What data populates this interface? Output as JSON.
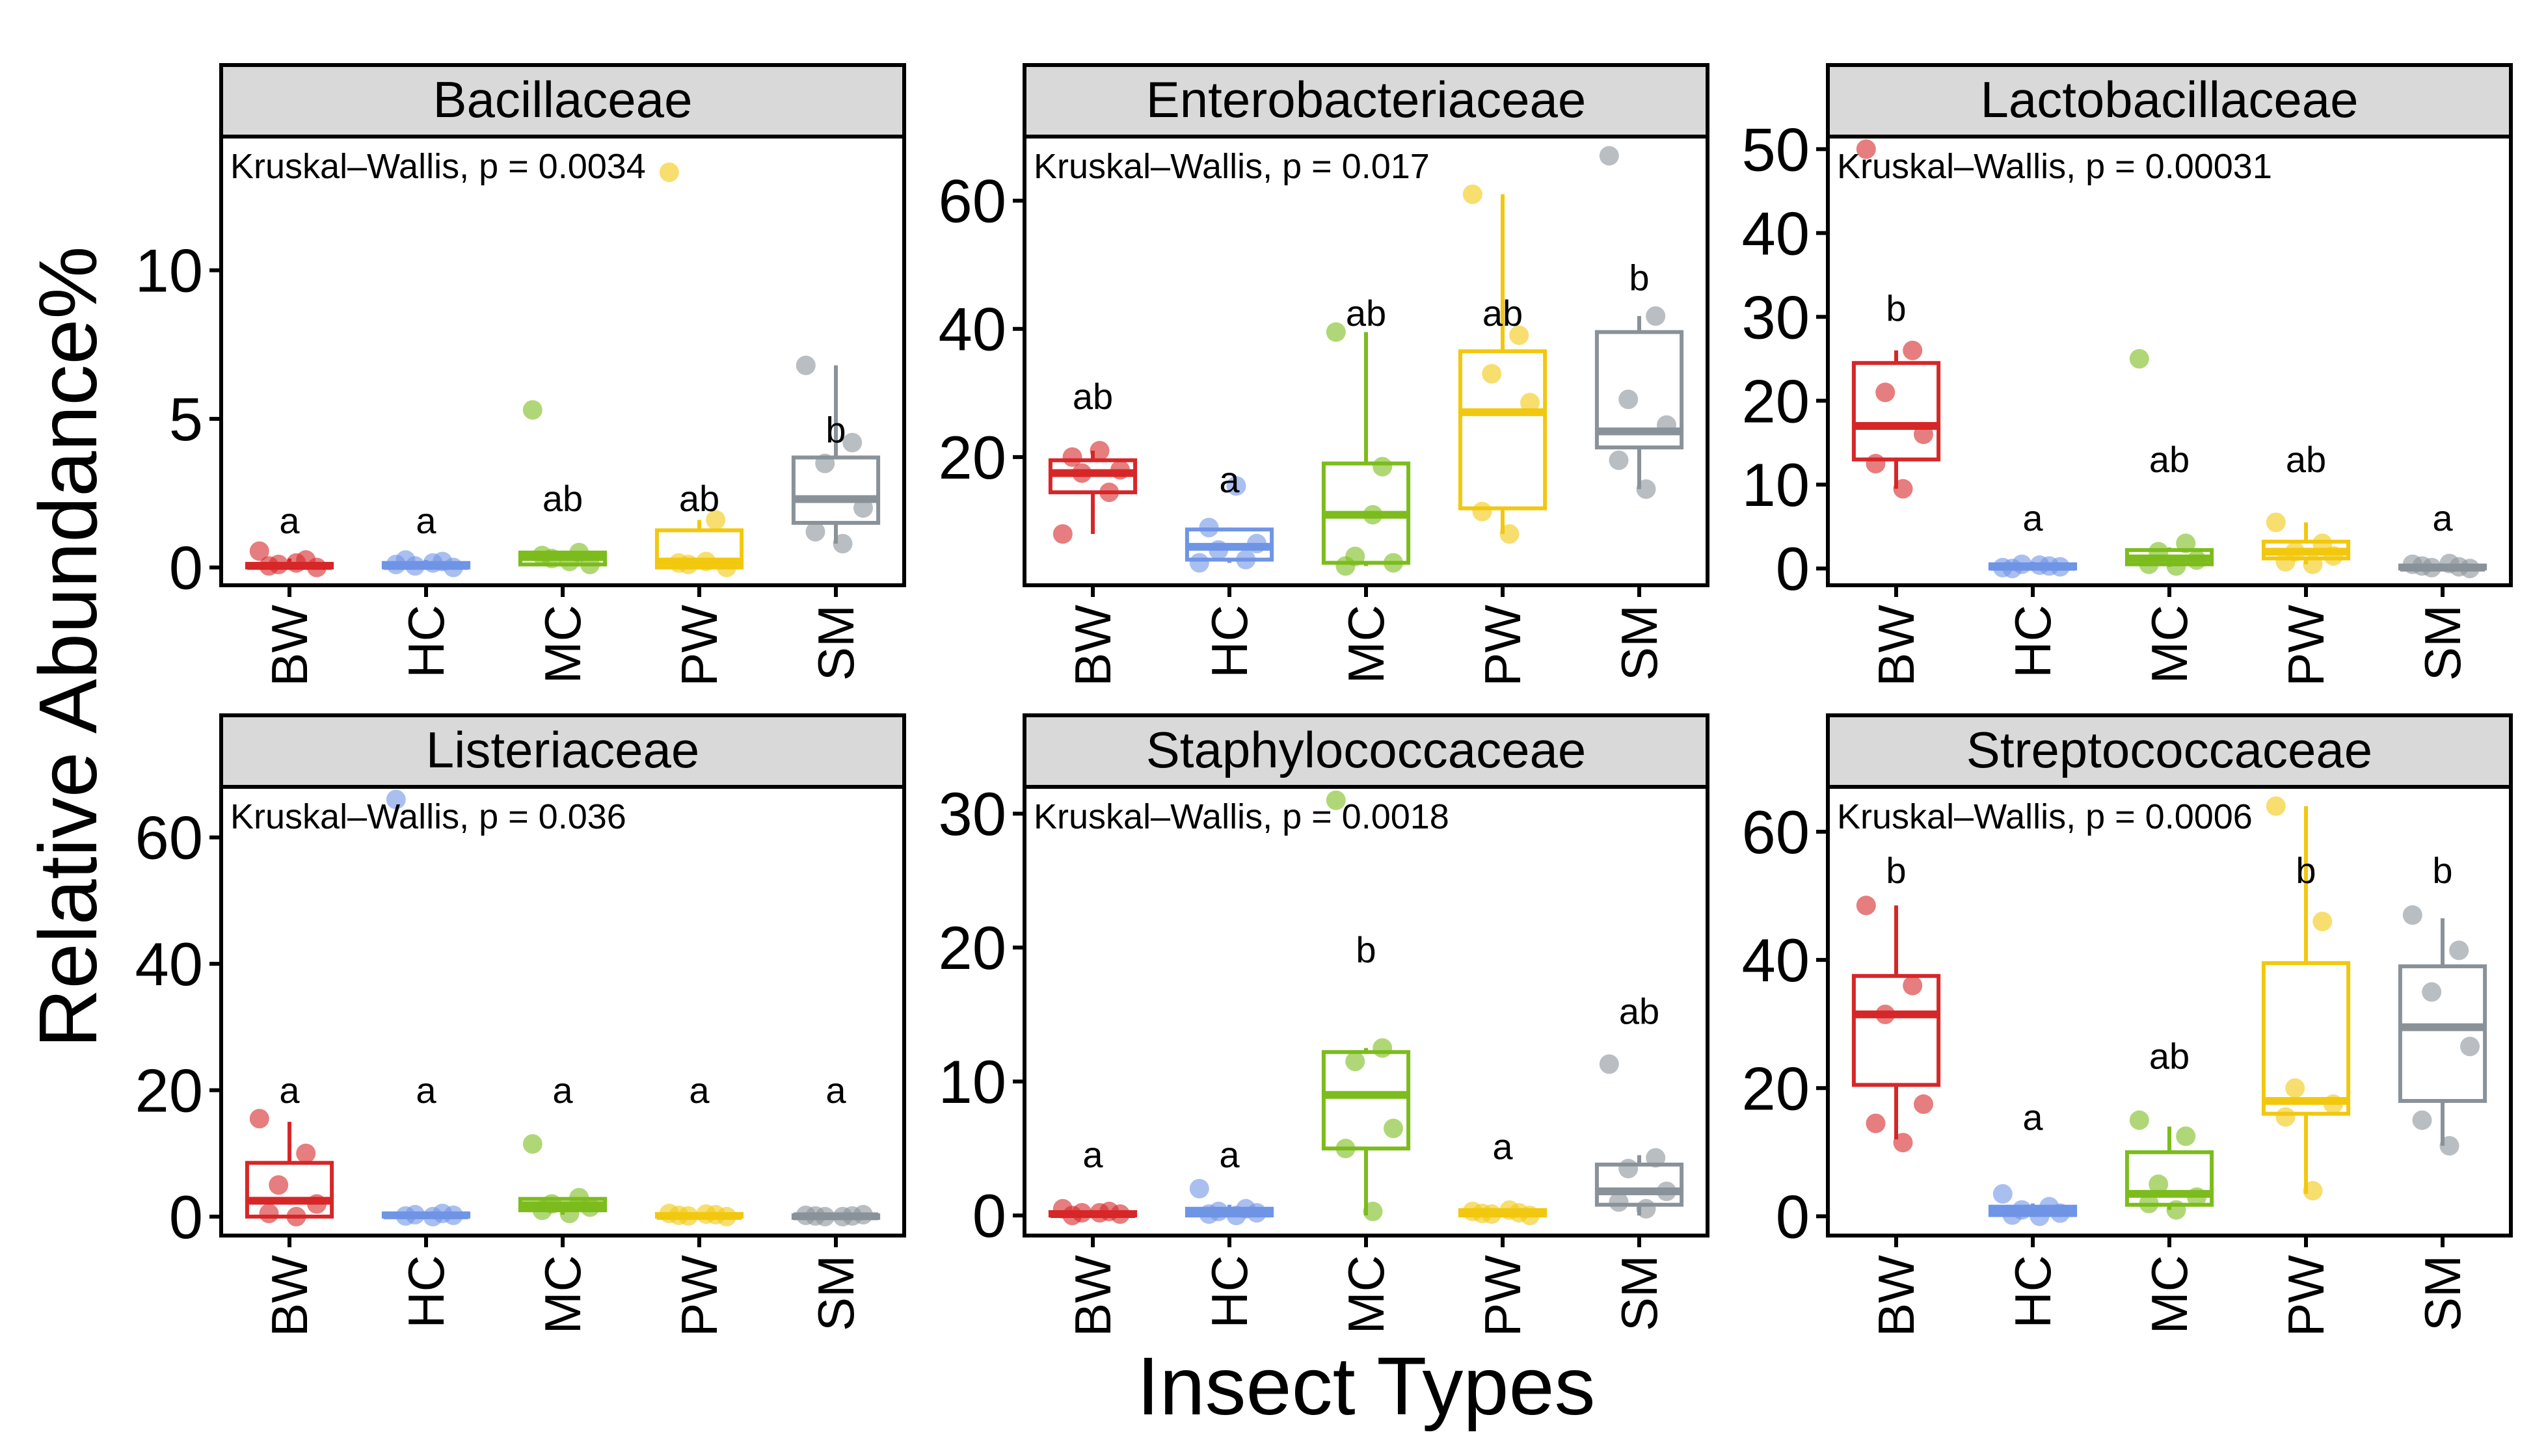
{
  "chart_data": {
    "type": "box",
    "ylabel": "Relative Abundance%",
    "xlabel": "Insect Types",
    "categories": [
      "BW",
      "HC",
      "MC",
      "PW",
      "SM"
    ],
    "colors": {
      "BW": "#d62728",
      "HC": "#6f95e6",
      "MC": "#7cbc1c",
      "PW": "#f2c80f",
      "SM": "#8a9299"
    },
    "panels": [
      {
        "title": "Bacillaceae",
        "test": "Kruskal–Wallis, p = 0.0034",
        "ylim": [
          -0.6,
          14.5
        ],
        "yticks": [
          "0",
          "5",
          "10"
        ],
        "ytick_values": [
          0,
          5,
          10
        ],
        "letters": [
          "a",
          "a",
          "ab",
          "ab",
          "b"
        ],
        "letter_y": [
          1.15,
          1.15,
          1.9,
          1.9,
          4.2
        ],
        "boxes": [
          {
            "min": 0,
            "q1": 0,
            "median": 0.05,
            "q3": 0.12,
            "max": 0.3
          },
          {
            "min": 0,
            "q1": 0,
            "median": 0.05,
            "q3": 0.15,
            "max": 0.25
          },
          {
            "min": 0.05,
            "q1": 0.1,
            "median": 0.35,
            "q3": 0.5,
            "max": 0.55
          },
          {
            "min": 0,
            "q1": 0,
            "median": 0.2,
            "q3": 1.25,
            "max": 1.6
          },
          {
            "min": 0.8,
            "q1": 1.5,
            "median": 2.3,
            "q3": 3.7,
            "max": 6.8
          }
        ],
        "points": [
          [
            0.55,
            0.25,
            0.1,
            0.0,
            0.05,
            0.15
          ],
          [
            0.1,
            0.2,
            0.05,
            0.0,
            0.25,
            0.15
          ],
          [
            5.3,
            0.5,
            0.3,
            0.1,
            0.4,
            0.2
          ],
          [
            13.3,
            1.6,
            0.1,
            0.0,
            0.15,
            0.2
          ],
          [
            6.8,
            4.2,
            3.5,
            2.0,
            1.2,
            0.8
          ]
        ]
      },
      {
        "title": "Enterobacteriaceae",
        "test": "Kruskal–Wallis, p = 0.017",
        "ylim": [
          0,
          70
        ],
        "yticks": [
          "20",
          "40",
          "60"
        ],
        "ytick_values": [
          20,
          40,
          60
        ],
        "letters": [
          "ab",
          "a",
          "ab",
          "ab",
          "b"
        ],
        "letter_y": [
          27.5,
          14.5,
          40.5,
          40.5,
          46
        ],
        "boxes": [
          {
            "min": 8,
            "q1": 14.5,
            "median": 17.5,
            "q3": 19.5,
            "max": 21
          },
          {
            "min": 3.5,
            "q1": 4,
            "median": 6,
            "q3": 8.7,
            "max": 9
          },
          {
            "min": 3,
            "q1": 3.5,
            "median": 11,
            "q3": 19,
            "max": 39.5
          },
          {
            "min": 8,
            "q1": 12,
            "median": 27,
            "q3": 36.5,
            "max": 61
          },
          {
            "min": 15,
            "q1": 21.5,
            "median": 24,
            "q3": 39.5,
            "max": 42
          }
        ],
        "points": [
          [
            8,
            14.5,
            17.5,
            18,
            20,
            21
          ],
          [
            3.5,
            4,
            5.5,
            6.5,
            9,
            15.5
          ],
          [
            39.5,
            18.5,
            4.5,
            3.5,
            3,
            11
          ],
          [
            61,
            39,
            33,
            28.5,
            11.5,
            8
          ],
          [
            67,
            42,
            29,
            25,
            19.5,
            15
          ]
        ]
      },
      {
        "title": "Lactobacillaceae",
        "test": "Kruskal–Wallis, p = 0.00031",
        "ylim": [
          -2,
          51.5
        ],
        "yticks": [
          "0",
          "10",
          "20",
          "30",
          "40",
          "50"
        ],
        "ytick_values": [
          0,
          10,
          20,
          30,
          40,
          50
        ],
        "letters": [
          "b",
          "a",
          "ab",
          "ab",
          "a"
        ],
        "letter_y": [
          29.5,
          4.5,
          11.5,
          11.5,
          4.5
        ],
        "boxes": [
          {
            "min": 9.5,
            "q1": 13,
            "median": 17,
            "q3": 24.5,
            "max": 26
          },
          {
            "min": 0,
            "q1": 0,
            "median": 0.2,
            "q3": 0.5,
            "max": 0.8
          },
          {
            "min": 0.2,
            "q1": 0.5,
            "median": 1.2,
            "q3": 2.2,
            "max": 2.5
          },
          {
            "min": 0.5,
            "q1": 1.2,
            "median": 2.0,
            "q3": 3.2,
            "max": 5.5
          },
          {
            "min": 0,
            "q1": 0,
            "median": 0.1,
            "q3": 0.35,
            "max": 0.6
          }
        ],
        "points": [
          [
            50,
            26,
            21,
            16,
            12.5,
            9.5
          ],
          [
            0.1,
            0.3,
            0.5,
            0.2,
            0.0,
            0.4
          ],
          [
            25,
            3,
            2,
            1,
            0.5,
            0.3
          ],
          [
            5.5,
            3,
            2,
            1.5,
            0.8,
            0.5
          ],
          [
            0.5,
            0.2,
            0.1,
            0.0,
            0.3,
            0.6
          ]
        ]
      },
      {
        "title": "Listeriaceae",
        "test": "Kruskal–Wallis, p = 0.036",
        "ylim": [
          -3,
          68
        ],
        "yticks": [
          "0",
          "20",
          "40",
          "60"
        ],
        "ytick_values": [
          0,
          20,
          40,
          60
        ],
        "letters": [
          "a",
          "a",
          "a",
          "a",
          "a"
        ],
        "letter_y": [
          18,
          18,
          18,
          18,
          18
        ],
        "boxes": [
          {
            "min": 0,
            "q1": 0,
            "median": 2.5,
            "q3": 8.5,
            "max": 15
          },
          {
            "min": 0,
            "q1": 0,
            "median": 0.2,
            "q3": 0.5,
            "max": 0.8
          },
          {
            "min": 0.3,
            "q1": 1,
            "median": 1.8,
            "q3": 2.8,
            "max": 3
          },
          {
            "min": 0,
            "q1": 0,
            "median": 0.1,
            "q3": 0.4,
            "max": 0.6
          },
          {
            "min": 0,
            "q1": 0,
            "median": 0.05,
            "q3": 0.2,
            "max": 0.3
          }
        ],
        "points": [
          [
            15.5,
            10,
            5,
            2,
            0.5,
            0
          ],
          [
            66,
            0.5,
            0.3,
            0.2,
            0.1,
            0.0
          ],
          [
            11.5,
            3,
            2,
            1.5,
            1,
            0.5
          ],
          [
            0.5,
            0.3,
            0.1,
            0.0,
            0.2,
            0.4
          ],
          [
            0.2,
            0.1,
            0.0,
            0.3,
            0.1,
            0.0
          ]
        ]
      },
      {
        "title": "Staphylococcaceae",
        "test": "Kruskal–Wallis, p = 0.0018",
        "ylim": [
          -1.5,
          32
        ],
        "yticks": [
          "0",
          "10",
          "20",
          "30"
        ],
        "ytick_values": [
          0,
          10,
          20,
          30
        ],
        "letters": [
          "a",
          "a",
          "b",
          "a",
          "ab"
        ],
        "letter_y": [
          3.6,
          3.6,
          18.9,
          4.2,
          14.3
        ],
        "boxes": [
          {
            "min": 0,
            "q1": 0,
            "median": 0.1,
            "q3": 0.25,
            "max": 0.4
          },
          {
            "min": 0,
            "q1": 0,
            "median": 0.2,
            "q3": 0.5,
            "max": 0.8
          },
          {
            "min": 0,
            "q1": 5,
            "median": 9,
            "q3": 12.2,
            "max": 12.5
          },
          {
            "min": 0,
            "q1": 0,
            "median": 0.15,
            "q3": 0.4,
            "max": 0.5
          },
          {
            "min": 0,
            "q1": 0.8,
            "median": 1.8,
            "q3": 3.8,
            "max": 4.5
          }
        ],
        "points": [
          [
            0.5,
            0.3,
            0.2,
            0.1,
            0.0,
            0.2
          ],
          [
            2,
            0.5,
            0.3,
            0.2,
            0.1,
            0.0
          ],
          [
            31,
            12.5,
            11.5,
            6.5,
            5,
            0.3
          ],
          [
            0.3,
            0.2,
            0.1,
            0.0,
            0.15,
            0.4
          ],
          [
            11.3,
            4.3,
            3.5,
            1.8,
            1.0,
            0.5
          ]
        ]
      },
      {
        "title": "Streptococcaceae",
        "test": "Kruskal–Wallis, p = 0.0006",
        "ylim": [
          -3,
          67
        ],
        "yticks": [
          "0",
          "20",
          "40",
          "60"
        ],
        "ytick_values": [
          0,
          20,
          40,
          60
        ],
        "letters": [
          "b",
          "a",
          "ab",
          "b",
          "b"
        ],
        "letter_y": [
          52,
          13.5,
          23,
          52,
          52
        ],
        "boxes": [
          {
            "min": 12,
            "q1": 20.5,
            "median": 31.5,
            "q3": 37.5,
            "max": 48.5
          },
          {
            "min": 0,
            "q1": 0.2,
            "median": 0.8,
            "q3": 1.5,
            "max": 2
          },
          {
            "min": 1,
            "q1": 1.8,
            "median": 3.5,
            "q3": 10,
            "max": 14
          },
          {
            "min": 3.5,
            "q1": 16,
            "median": 18,
            "q3": 39.5,
            "max": 64
          },
          {
            "min": 11,
            "q1": 18,
            "median": 29.5,
            "q3": 39,
            "max": 46.5
          }
        ],
        "points": [
          [
            48.5,
            36,
            31.5,
            17.5,
            14.5,
            11.5
          ],
          [
            3.5,
            1.5,
            1,
            0.5,
            0.2,
            0.0
          ],
          [
            15,
            12.5,
            5,
            3,
            2,
            1
          ],
          [
            64,
            46,
            20,
            17.5,
            15.5,
            4
          ],
          [
            47,
            41.5,
            35,
            26.5,
            15,
            11
          ]
        ]
      }
    ]
  }
}
